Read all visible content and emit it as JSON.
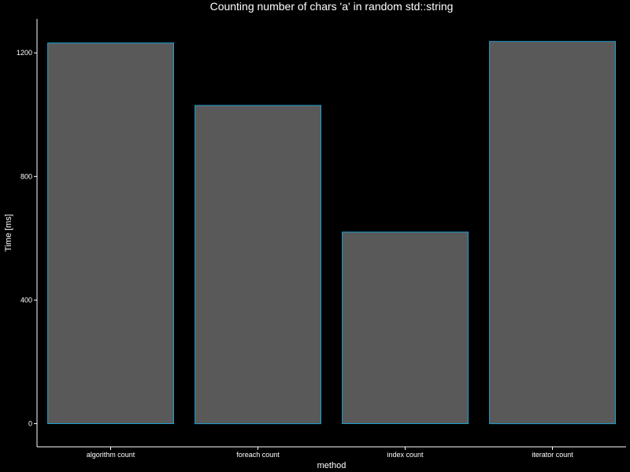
{
  "chart_data": {
    "type": "bar",
    "title": "Counting number of chars 'a' in random std::string",
    "xlabel": "method",
    "ylabel": "Time [ms]",
    "categories": [
      "algorithm count",
      "foreach count",
      "index count",
      "iterator count"
    ],
    "values": [
      1232,
      1030,
      620,
      1237
    ],
    "ylim": [
      -75,
      1310
    ],
    "yticks": [
      0,
      400,
      800,
      1200
    ],
    "grid": false,
    "legend": "none",
    "colors": {
      "background": "#000000",
      "bar_fill": "#595959",
      "bar_stroke": "#1f9fd0",
      "text": "#ffffff",
      "axis": "#ffffff"
    }
  }
}
